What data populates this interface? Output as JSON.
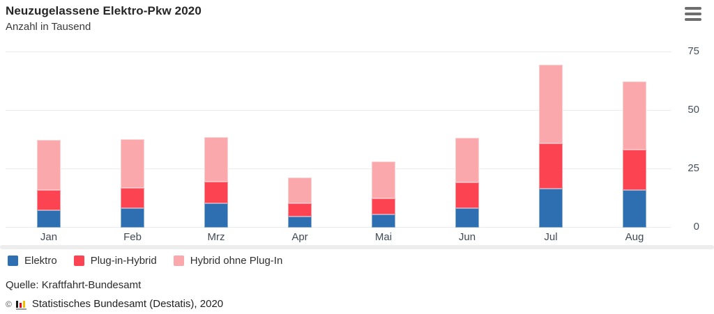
{
  "header": {
    "title": "Neuzugelassene Elektro-Pkw 2020",
    "subtitle": "Anzahl in Tausend",
    "menu_icon": "hamburger-icon"
  },
  "chart_data": {
    "type": "bar",
    "stacked": true,
    "title": "Neuzugelassene Elektro-Pkw 2020",
    "ylabel": "Anzahl in Tausend",
    "categories": [
      "Jan",
      "Feb",
      "Mrz",
      "Apr",
      "Mai",
      "Jun",
      "Jul",
      "Aug"
    ],
    "series": [
      {
        "name": "Elektro",
        "color": "#2e6fb2",
        "values": [
          7.5,
          8.2,
          10.3,
          4.8,
          5.6,
          8.3,
          16.8,
          16.1
        ]
      },
      {
        "name": "Plug-in-Hybrid",
        "color": "#fb4351",
        "values": [
          8.6,
          8.9,
          9.3,
          5.6,
          6.8,
          11.0,
          19.1,
          17.2
        ]
      },
      {
        "name": "Hybrid ohne Plug-In",
        "color": "#fba8ac",
        "values": [
          21.5,
          20.7,
          19.0,
          11.0,
          15.9,
          19.1,
          33.6,
          29.2
        ]
      }
    ],
    "yticks": [
      0,
      25,
      50,
      75
    ],
    "ylim": [
      0,
      75
    ],
    "grid": true,
    "legend_position": "bottom"
  },
  "footer": {
    "source": "Quelle: Kraftfahrt-Bundesamt",
    "copyright_symbol": "©",
    "copyright": "Statistisches Bundesamt (Destatis), 2020"
  },
  "colors": {
    "grid": "#ebebeb",
    "axis_text": "#46505a",
    "scroll_track": "#ededed",
    "destatis_logo_black": "#1a1a1a",
    "destatis_logo_red": "#e2001a",
    "destatis_logo_yellow": "#f5bf00",
    "destatis_logo_underline": "#9a9a9a"
  }
}
